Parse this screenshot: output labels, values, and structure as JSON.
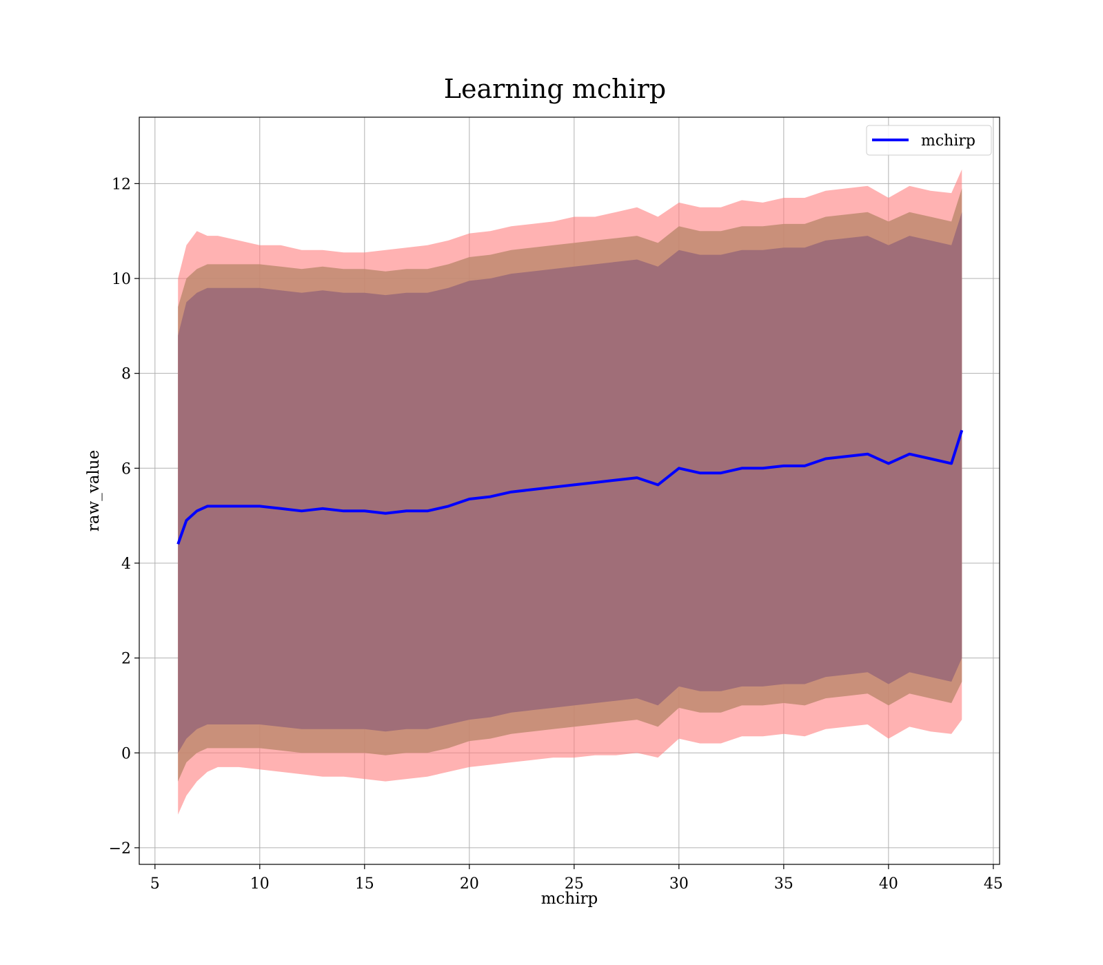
{
  "chart_data": {
    "type": "line",
    "title": "Learning mchirp",
    "xlabel": "mchirp",
    "ylabel": "raw_value",
    "xlim": [
      4.25,
      45.3
    ],
    "ylim": [
      -2.35,
      13.4
    ],
    "xticks": [
      5,
      10,
      15,
      20,
      25,
      30,
      35,
      40,
      45
    ],
    "yticks": [
      -2,
      0,
      2,
      4,
      6,
      8,
      10,
      12
    ],
    "xtick_labels": [
      "5",
      "10",
      "15",
      "20",
      "25",
      "30",
      "35",
      "40",
      "45"
    ],
    "ytick_labels": [
      "−2",
      "0",
      "2",
      "4",
      "6",
      "8",
      "10",
      "12"
    ],
    "grid": true,
    "legend_position": "top-right",
    "colors": {
      "line": "#0000ff",
      "outer_band": "#ff7f7f",
      "middle_band": "#c08a70",
      "inner_band": "#a06e78"
    },
    "x": [
      6.1,
      6.5,
      7,
      7.5,
      8,
      9,
      10,
      11,
      12,
      13,
      14,
      15,
      16,
      17,
      18,
      19,
      20,
      21,
      22,
      23,
      24,
      25,
      26,
      27,
      28,
      29,
      30,
      31,
      32,
      33,
      34,
      35,
      36,
      37,
      38,
      39,
      40,
      41,
      42,
      43,
      43.5
    ],
    "series": [
      {
        "name": "mchirp",
        "values": [
          4.4,
          4.9,
          5.1,
          5.2,
          5.2,
          5.2,
          5.2,
          5.15,
          5.1,
          5.15,
          5.1,
          5.1,
          5.05,
          5.1,
          5.1,
          5.2,
          5.35,
          5.4,
          5.5,
          5.55,
          5.6,
          5.65,
          5.7,
          5.75,
          5.8,
          5.65,
          6.0,
          5.9,
          5.9,
          6.0,
          6.0,
          6.05,
          6.05,
          6.2,
          6.25,
          6.3,
          6.1,
          6.3,
          6.2,
          6.1,
          6.8
        ]
      }
    ],
    "bands": [
      {
        "lower": [
          -1.3,
          -0.9,
          -0.6,
          -0.4,
          -0.3,
          -0.3,
          -0.35,
          -0.4,
          -0.45,
          -0.5,
          -0.5,
          -0.55,
          -0.6,
          -0.55,
          -0.5,
          -0.4,
          -0.3,
          -0.25,
          -0.2,
          -0.15,
          -0.1,
          -0.1,
          -0.05,
          -0.05,
          0.0,
          -0.1,
          0.3,
          0.2,
          0.2,
          0.35,
          0.35,
          0.4,
          0.35,
          0.5,
          0.55,
          0.6,
          0.3,
          0.55,
          0.45,
          0.4,
          0.7
        ],
        "upper": [
          10.0,
          10.7,
          11.0,
          10.9,
          10.9,
          10.8,
          10.7,
          10.7,
          10.6,
          10.6,
          10.55,
          10.55,
          10.6,
          10.65,
          10.7,
          10.8,
          10.95,
          11.0,
          11.1,
          11.15,
          11.2,
          11.3,
          11.3,
          11.4,
          11.5,
          11.3,
          11.6,
          11.5,
          11.5,
          11.65,
          11.6,
          11.7,
          11.7,
          11.85,
          11.9,
          11.95,
          11.7,
          11.95,
          11.85,
          11.8,
          12.3
        ]
      },
      {
        "lower": [
          -0.6,
          -0.2,
          0.0,
          0.1,
          0.1,
          0.1,
          0.1,
          0.05,
          0.0,
          0.0,
          0.0,
          0.0,
          -0.05,
          0.0,
          0.0,
          0.1,
          0.25,
          0.3,
          0.4,
          0.45,
          0.5,
          0.55,
          0.6,
          0.65,
          0.7,
          0.55,
          0.95,
          0.85,
          0.85,
          1.0,
          1.0,
          1.05,
          1.0,
          1.15,
          1.2,
          1.25,
          1.0,
          1.25,
          1.15,
          1.05,
          1.5
        ],
        "upper": [
          9.4,
          10.0,
          10.2,
          10.3,
          10.3,
          10.3,
          10.3,
          10.25,
          10.2,
          10.25,
          10.2,
          10.2,
          10.15,
          10.2,
          10.2,
          10.3,
          10.45,
          10.5,
          10.6,
          10.65,
          10.7,
          10.75,
          10.8,
          10.85,
          10.9,
          10.75,
          11.1,
          11.0,
          11.0,
          11.1,
          11.1,
          11.15,
          11.15,
          11.3,
          11.35,
          11.4,
          11.2,
          11.4,
          11.3,
          11.2,
          11.9
        ]
      },
      {
        "lower": [
          0.0,
          0.3,
          0.5,
          0.6,
          0.6,
          0.6,
          0.6,
          0.55,
          0.5,
          0.5,
          0.5,
          0.5,
          0.45,
          0.5,
          0.5,
          0.6,
          0.7,
          0.75,
          0.85,
          0.9,
          0.95,
          1.0,
          1.05,
          1.1,
          1.15,
          1.0,
          1.4,
          1.3,
          1.3,
          1.4,
          1.4,
          1.45,
          1.45,
          1.6,
          1.65,
          1.7,
          1.45,
          1.7,
          1.6,
          1.5,
          2.0
        ],
        "upper": [
          8.8,
          9.5,
          9.7,
          9.8,
          9.8,
          9.8,
          9.8,
          9.75,
          9.7,
          9.75,
          9.7,
          9.7,
          9.65,
          9.7,
          9.7,
          9.8,
          9.95,
          10.0,
          10.1,
          10.15,
          10.2,
          10.25,
          10.3,
          10.35,
          10.4,
          10.25,
          10.6,
          10.5,
          10.5,
          10.6,
          10.6,
          10.65,
          10.65,
          10.8,
          10.85,
          10.9,
          10.7,
          10.9,
          10.8,
          10.7,
          11.4
        ]
      }
    ]
  }
}
